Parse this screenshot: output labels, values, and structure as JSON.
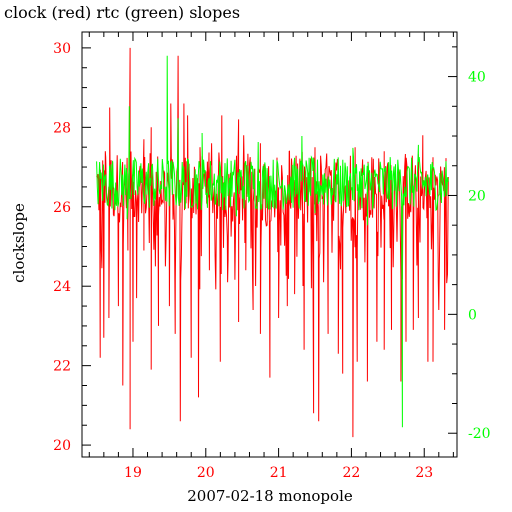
{
  "chart_data": {
    "type": "line",
    "title": "clock (red) rtc (green) slopes",
    "xlabel": "2007-02-18 monopole",
    "ylabel": "clockslope",
    "xlim": [
      18.3,
      23.45
    ],
    "ylim": [
      19.7,
      30.4
    ],
    "y2lim": [
      -24.0,
      47.5
    ],
    "x_ticks": [
      "19",
      "20",
      "21",
      "22",
      "23"
    ],
    "y_ticks": [
      "20",
      "22",
      "24",
      "26",
      "28",
      "30"
    ],
    "y2_ticks": [
      "-20",
      "0",
      "20",
      "40"
    ],
    "grid": false,
    "colors": {
      "clock": "#ff0000",
      "rtc": "#00ff00",
      "axis": "#000000"
    },
    "series": [
      {
        "key": "clock",
        "axis": "left",
        "x_start": 18.5,
        "x_end": 23.33,
        "baseline": 26.5,
        "noise": 0.9,
        "dips": [
          {
            "x": 18.55,
            "y": 22.2
          },
          {
            "x": 18.6,
            "y": 22.7
          },
          {
            "x": 18.67,
            "y": 23.2
          },
          {
            "x": 18.8,
            "y": 23.5
          },
          {
            "x": 18.86,
            "y": 21.5
          },
          {
            "x": 18.93,
            "y": 24.9
          },
          {
            "x": 18.96,
            "y": 20.4
          },
          {
            "x": 19.0,
            "y": 22.6
          },
          {
            "x": 19.05,
            "y": 23.7
          },
          {
            "x": 19.15,
            "y": 24.9
          },
          {
            "x": 19.25,
            "y": 21.9
          },
          {
            "x": 19.35,
            "y": 23.0
          },
          {
            "x": 19.45,
            "y": 24.8
          },
          {
            "x": 19.5,
            "y": 23.5
          },
          {
            "x": 19.58,
            "y": 22.8
          },
          {
            "x": 19.65,
            "y": 20.6
          },
          {
            "x": 19.8,
            "y": 22.2
          },
          {
            "x": 19.9,
            "y": 21.2
          },
          {
            "x": 20.05,
            "y": 24.4
          },
          {
            "x": 20.2,
            "y": 22.1
          },
          {
            "x": 20.3,
            "y": 24.1
          },
          {
            "x": 20.45,
            "y": 23.1
          },
          {
            "x": 20.55,
            "y": 24.4
          },
          {
            "x": 20.65,
            "y": 23.4
          },
          {
            "x": 20.75,
            "y": 22.8
          },
          {
            "x": 20.88,
            "y": 21.7
          },
          {
            "x": 21.0,
            "y": 23.2
          },
          {
            "x": 21.12,
            "y": 23.5
          },
          {
            "x": 21.22,
            "y": 23.8
          },
          {
            "x": 21.35,
            "y": 22.4
          },
          {
            "x": 21.48,
            "y": 20.8
          },
          {
            "x": 21.55,
            "y": 20.6
          },
          {
            "x": 21.68,
            "y": 22.8
          },
          {
            "x": 21.82,
            "y": 22.3
          },
          {
            "x": 21.88,
            "y": 21.8
          },
          {
            "x": 22.02,
            "y": 20.2
          },
          {
            "x": 22.08,
            "y": 22.1
          },
          {
            "x": 22.22,
            "y": 21.6
          },
          {
            "x": 22.35,
            "y": 22.6
          },
          {
            "x": 22.45,
            "y": 22.4
          },
          {
            "x": 22.55,
            "y": 22.9
          },
          {
            "x": 22.68,
            "y": 21.6
          },
          {
            "x": 22.75,
            "y": 22.6
          },
          {
            "x": 22.85,
            "y": 22.9
          },
          {
            "x": 22.92,
            "y": 23.2
          },
          {
            "x": 23.05,
            "y": 22.1
          },
          {
            "x": 23.12,
            "y": 22.1
          },
          {
            "x": 23.2,
            "y": 23.4
          },
          {
            "x": 23.28,
            "y": 22.9
          }
        ],
        "spikes": [
          {
            "x": 18.62,
            "y": 27.4
          },
          {
            "x": 18.68,
            "y": 28.5
          },
          {
            "x": 18.96,
            "y": 30.0
          },
          {
            "x": 19.15,
            "y": 27.7
          },
          {
            "x": 19.25,
            "y": 28.0
          },
          {
            "x": 19.52,
            "y": 28.6
          },
          {
            "x": 19.62,
            "y": 29.8
          },
          {
            "x": 19.7,
            "y": 28.6
          },
          {
            "x": 19.75,
            "y": 28.3
          },
          {
            "x": 19.92,
            "y": 27.5
          },
          {
            "x": 20.08,
            "y": 27.6
          },
          {
            "x": 20.22,
            "y": 28.3
          },
          {
            "x": 20.45,
            "y": 28.2
          },
          {
            "x": 20.52,
            "y": 27.8
          },
          {
            "x": 20.75,
            "y": 27.6
          },
          {
            "x": 21.15,
            "y": 27.4
          },
          {
            "x": 21.5,
            "y": 27.5
          },
          {
            "x": 22.05,
            "y": 27.5
          },
          {
            "x": 22.45,
            "y": 27.4
          },
          {
            "x": 22.98,
            "y": 27.8
          }
        ]
      },
      {
        "key": "rtc",
        "axis": "right",
        "x_start": 18.5,
        "x_end": 23.33,
        "baseline": 22.0,
        "noise": 4.5,
        "dips": [
          {
            "x": 18.92,
            "y": 16.0
          },
          {
            "x": 20.42,
            "y": 16.5
          },
          {
            "x": 21.5,
            "y": 17.0
          },
          {
            "x": 22.22,
            "y": 15.0
          },
          {
            "x": 22.7,
            "y": -19.0
          }
        ],
        "spikes": [
          {
            "x": 18.95,
            "y": 35.0
          },
          {
            "x": 19.47,
            "y": 43.5
          },
          {
            "x": 19.62,
            "y": 33.0
          },
          {
            "x": 19.95,
            "y": 30.5
          },
          {
            "x": 20.72,
            "y": 29.0
          },
          {
            "x": 21.32,
            "y": 30.0
          },
          {
            "x": 22.02,
            "y": 28.0
          },
          {
            "x": 22.92,
            "y": 28.5
          }
        ]
      }
    ]
  }
}
